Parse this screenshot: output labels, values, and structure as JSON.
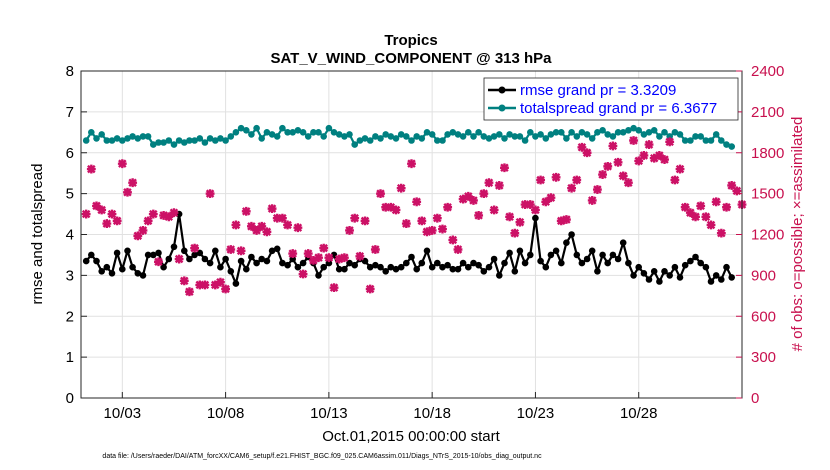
{
  "chart_data": {
    "type": "line",
    "title": "Tropics",
    "subtitle": "SAT_V_WIND_COMPONENT @ 313 hPa",
    "xlabel": "Oct.01,2015 00:00:00 start",
    "ylabel": "rmse and totalspread",
    "ylabel_right": "# of obs: o=possible; ×=assimilated",
    "footnote": "data file: /Users/raeder/DAI/ATM_forcXX/CAM6_setup/f.e21.FHIST_BGC.f09_025.CAM6assim.011/Diags_NTrS_2015-10/obs_diag_output.nc",
    "xlim": [
      1.0,
      33.0
    ],
    "ylim": [
      0,
      8
    ],
    "ylim_right": [
      0,
      2400
    ],
    "x_ticks": [
      {
        "value": 3,
        "label": "10/03"
      },
      {
        "value": 8,
        "label": "10/08"
      },
      {
        "value": 13,
        "label": "10/13"
      },
      {
        "value": 18,
        "label": "10/18"
      },
      {
        "value": 23,
        "label": "10/23"
      },
      {
        "value": 28,
        "label": "10/28"
      }
    ],
    "y_ticks": [
      "0",
      "1",
      "2",
      "3",
      "4",
      "5",
      "6",
      "7",
      "8"
    ],
    "y_ticks_right": [
      "0",
      "300",
      "600",
      "900",
      "1200",
      "1500",
      "1800",
      "2100",
      "2400"
    ],
    "x_start": 1.25,
    "x_step": 0.25,
    "series": [
      {
        "name": "rmse",
        "legend": "rmse grand pr = 3.3209",
        "color": "#000000",
        "marker": "circle",
        "axis": "left",
        "values": [
          3.35,
          3.5,
          3.35,
          3.1,
          3.2,
          3.05,
          3.55,
          3.15,
          3.6,
          3.2,
          3.05,
          3.0,
          3.5,
          3.5,
          3.55,
          3.2,
          3.4,
          3.7,
          4.5,
          3.6,
          3.4,
          3.5,
          3.55,
          3.4,
          3.3,
          3.6,
          3.2,
          3.4,
          3.1,
          2.8,
          3.35,
          3.15,
          3.45,
          3.3,
          3.4,
          3.35,
          3.6,
          3.65,
          3.3,
          3.25,
          3.4,
          3.2,
          3.3,
          3.45,
          3.3,
          3.0,
          3.2,
          3.3,
          3.5,
          3.15,
          3.15,
          3.3,
          3.25,
          3.4,
          3.35,
          3.2,
          3.25,
          3.2,
          3.1,
          3.2,
          3.15,
          3.2,
          3.3,
          3.45,
          3.15,
          3.3,
          3.6,
          3.2,
          3.3,
          3.2,
          3.25,
          3.15,
          3.15,
          3.3,
          3.2,
          3.3,
          3.25,
          3.1,
          3.2,
          3.4,
          3.0,
          3.3,
          3.55,
          3.1,
          3.6,
          3.3,
          3.5,
          4.4,
          3.35,
          3.2,
          3.5,
          3.6,
          3.3,
          3.8,
          4.0,
          3.5,
          3.3,
          3.4,
          3.6,
          3.1,
          3.5,
          3.3,
          3.5,
          3.4,
          3.8,
          3.3,
          3.0,
          3.2,
          3.05,
          2.9,
          3.1,
          2.85,
          3.1,
          3.0,
          3.2,
          2.95,
          3.25,
          3.35,
          3.45,
          3.3,
          3.2,
          2.85,
          3.0,
          2.9,
          3.2,
          2.95
        ]
      },
      {
        "name": "totalspread",
        "legend": "totalspread grand pr = 6.3677",
        "color": "#008080",
        "marker": "circle",
        "axis": "left",
        "values": [
          6.3,
          6.5,
          6.35,
          6.45,
          6.3,
          6.3,
          6.35,
          6.3,
          6.35,
          6.4,
          6.35,
          6.4,
          6.4,
          6.2,
          6.25,
          6.25,
          6.3,
          6.2,
          6.3,
          6.25,
          6.3,
          6.3,
          6.35,
          6.25,
          6.35,
          6.3,
          6.35,
          6.3,
          6.4,
          6.5,
          6.6,
          6.55,
          6.45,
          6.6,
          6.35,
          6.5,
          6.45,
          6.4,
          6.6,
          6.5,
          6.5,
          6.55,
          6.5,
          6.4,
          6.5,
          6.5,
          6.4,
          6.6,
          6.5,
          6.45,
          6.4,
          6.45,
          6.2,
          6.3,
          6.35,
          6.3,
          6.4,
          6.35,
          6.45,
          6.4,
          6.35,
          6.45,
          6.4,
          6.3,
          6.4,
          6.35,
          6.5,
          6.45,
          6.3,
          6.3,
          6.45,
          6.5,
          6.45,
          6.4,
          6.5,
          6.4,
          6.5,
          6.4,
          6.35,
          6.4,
          6.45,
          6.35,
          6.45,
          6.4,
          6.4,
          6.3,
          6.5,
          6.4,
          6.45,
          6.35,
          6.45,
          6.5,
          6.5,
          6.35,
          6.5,
          6.4,
          6.5,
          6.45,
          6.35,
          6.5,
          6.55,
          6.45,
          6.4,
          6.5,
          6.5,
          6.55,
          6.6,
          6.55,
          6.45,
          6.5,
          6.55,
          6.4,
          6.5,
          6.4,
          6.5,
          6.45,
          6.3,
          6.3,
          6.4,
          6.4,
          6.3,
          6.3,
          6.45,
          6.3,
          6.2,
          6.15
        ]
      },
      {
        "name": "# assimilated",
        "color": "#cc1166",
        "marker": "x",
        "axis": "right",
        "values": [
          1350,
          1680,
          1410,
          1380,
          1280,
          1350,
          1300,
          1720,
          1510,
          1580,
          1190,
          1230,
          1300,
          1350,
          1000,
          1340,
          1330,
          1360,
          1020,
          860,
          780,
          1100,
          830,
          830,
          1500,
          830,
          850,
          800,
          1090,
          1270,
          1080,
          1370,
          1260,
          1230,
          1260,
          1220,
          1390,
          1320,
          1320,
          1270,
          1060,
          1250,
          910,
          1060,
          1010,
          1030,
          1100,
          1030,
          810,
          1020,
          1030,
          1230,
          1320,
          1040,
          1300,
          800,
          1090,
          1500,
          1400,
          1400,
          1380,
          1540,
          1280,
          1720,
          1440,
          1300,
          1220,
          1230,
          1320,
          1240,
          1400,
          1160,
          1090,
          1460,
          1480,
          1450,
          1340,
          1500,
          1580,
          1380,
          1560,
          1690,
          1330,
          1210,
          1290,
          1420,
          1420,
          1380,
          1600,
          1440,
          1470,
          1620,
          1300,
          1310,
          1540,
          1600,
          1840,
          1800,
          1450,
          1530,
          1640,
          1700,
          1850,
          1730,
          1630,
          1580,
          1890,
          1740,
          1780,
          1860,
          1760,
          1780,
          1750,
          1880,
          1600,
          1680,
          1400,
          1360,
          1330,
          1410,
          1330,
          1270,
          1440,
          1210,
          1400,
          1560,
          1520,
          1420
        ]
      }
    ],
    "legend_position": "top-right"
  }
}
